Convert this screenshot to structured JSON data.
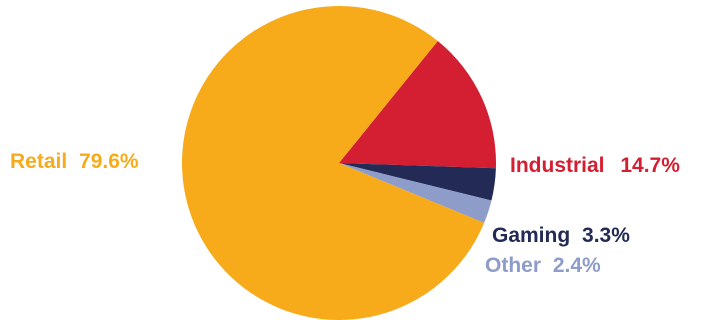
{
  "chart_data": {
    "type": "pie",
    "start_angle_deg": -51,
    "direction": "clockwise",
    "slices": [
      {
        "name": "Industrial",
        "value_label": "14.7%",
        "value": 14.7,
        "color": "#d41f32"
      },
      {
        "name": "Gaming",
        "value_label": "3.3%",
        "value": 3.3,
        "color": "#222a55"
      },
      {
        "name": "Other",
        "value_label": "2.4%",
        "value": 2.4,
        "color": "#8e9cc9"
      },
      {
        "name": "Retail",
        "value_label": "79.6%",
        "value": 79.6,
        "color": "#f7ab1b"
      }
    ]
  }
}
